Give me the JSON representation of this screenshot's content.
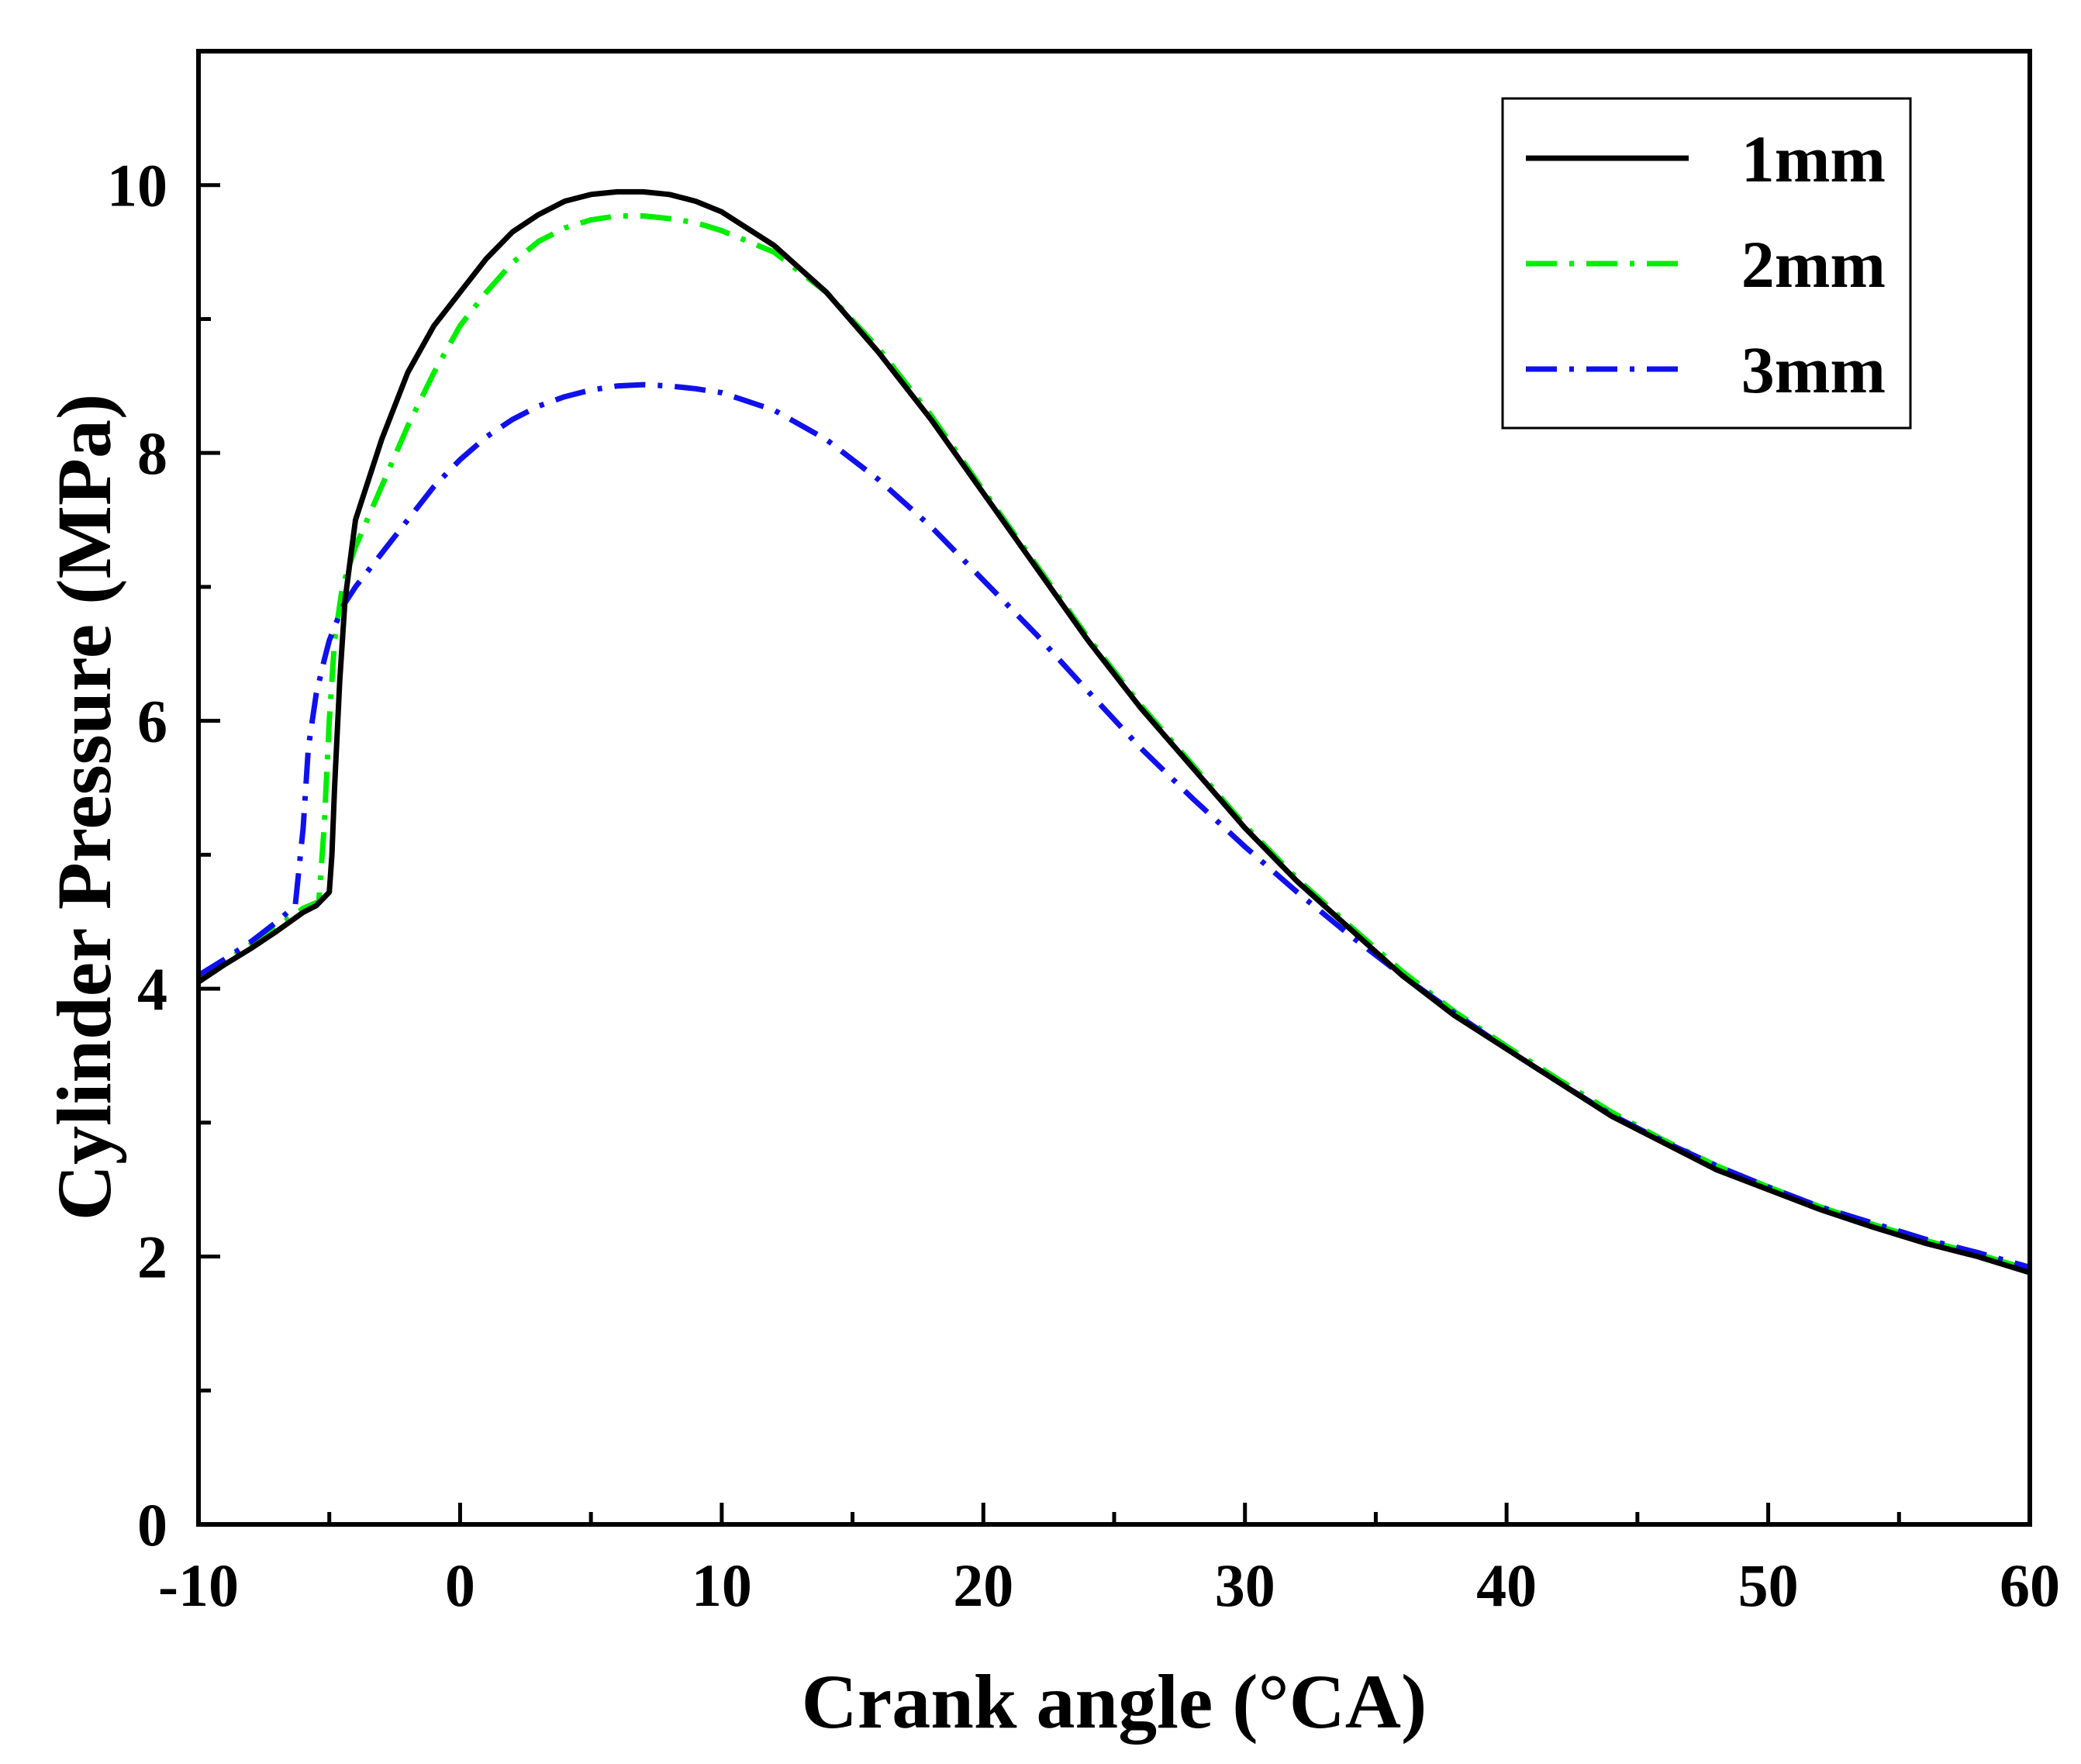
{
  "chart_data": {
    "type": "line",
    "title": "",
    "xlabel": "Crank angle (°CA)",
    "ylabel": "Cylinder Pressure (MPa)",
    "xlim": [
      -10,
      60
    ],
    "ylim": [
      0,
      11
    ],
    "xticks": [
      -10,
      0,
      10,
      20,
      30,
      40,
      50,
      60
    ],
    "xtick_labels": [
      "-10",
      "0",
      "10",
      "20",
      "30",
      "40",
      "50",
      "60"
    ],
    "yticks": [
      0,
      2,
      4,
      6,
      8,
      10
    ],
    "ytick_labels": [
      "0",
      "2",
      "4",
      "6",
      "8",
      "10"
    ],
    "grid": false,
    "legend_position": "top-right",
    "series": [
      {
        "name": "1mm",
        "color": "#000000",
        "style": "solid",
        "x": [
          -10,
          -9,
          -8,
          -7,
          -6,
          -5.5,
          -5,
          -4.9,
          -4.8,
          -4.6,
          -4.4,
          -4.2,
          -4,
          -3,
          -2,
          -1,
          0,
          1,
          2,
          3,
          4,
          5,
          6,
          7,
          8,
          9,
          10,
          12,
          14,
          16,
          18,
          20,
          22,
          24,
          26,
          28,
          30,
          32,
          34,
          36,
          38,
          40,
          42,
          44,
          46,
          48,
          50,
          52,
          54,
          56,
          58,
          60
        ],
        "y": [
          4.05,
          4.18,
          4.3,
          4.43,
          4.57,
          4.62,
          4.72,
          5.0,
          5.5,
          6.3,
          6.9,
          7.2,
          7.5,
          8.1,
          8.6,
          8.95,
          9.2,
          9.45,
          9.65,
          9.78,
          9.88,
          9.93,
          9.95,
          9.95,
          9.93,
          9.88,
          9.8,
          9.55,
          9.2,
          8.75,
          8.25,
          7.7,
          7.15,
          6.6,
          6.1,
          5.65,
          5.2,
          4.8,
          4.45,
          4.1,
          3.8,
          3.55,
          3.3,
          3.05,
          2.85,
          2.65,
          2.5,
          2.35,
          2.22,
          2.1,
          2.0,
          1.88
        ]
      },
      {
        "name": "2mm",
        "color": "#00ee00",
        "style": "dashdot",
        "x": [
          -10,
          -9,
          -8,
          -7,
          -6,
          -5.4,
          -5.2,
          -5.0,
          -4.8,
          -4.5,
          -4,
          -3,
          -2,
          -1,
          0,
          1,
          2,
          3,
          4,
          5,
          6,
          7,
          8,
          9,
          10,
          12,
          14,
          16,
          18,
          20,
          22,
          24,
          26,
          28,
          30,
          32,
          34,
          36,
          38,
          40,
          42,
          44,
          46,
          48,
          50,
          52,
          54,
          56,
          58,
          60
        ],
        "y": [
          4.08,
          4.2,
          4.33,
          4.46,
          4.6,
          4.65,
          5.2,
          6.0,
          6.6,
          7.0,
          7.3,
          7.75,
          8.2,
          8.6,
          8.95,
          9.2,
          9.42,
          9.58,
          9.68,
          9.74,
          9.77,
          9.77,
          9.75,
          9.72,
          9.66,
          9.5,
          9.2,
          8.78,
          8.28,
          7.72,
          7.17,
          6.62,
          6.12,
          5.67,
          5.22,
          4.82,
          4.47,
          4.13,
          3.83,
          3.57,
          3.32,
          3.08,
          2.87,
          2.68,
          2.52,
          2.37,
          2.24,
          2.12,
          2.02,
          1.9
        ]
      },
      {
        "name": "3mm",
        "color": "#1010ee",
        "style": "dashdot",
        "x": [
          -10,
          -9,
          -8,
          -7,
          -6.3,
          -6,
          -5.8,
          -5.5,
          -5.2,
          -5,
          -4.5,
          -4,
          -3,
          -2,
          -1,
          0,
          1,
          2,
          3,
          4,
          5,
          6,
          7,
          8,
          9,
          10,
          12,
          14,
          16,
          18,
          20,
          22,
          24,
          26,
          28,
          30,
          32,
          34,
          36,
          38,
          40,
          42,
          44,
          46,
          48,
          50,
          52,
          54,
          56,
          58,
          60
        ],
        "y": [
          4.1,
          4.22,
          4.35,
          4.5,
          4.62,
          5.2,
          5.8,
          6.2,
          6.45,
          6.6,
          6.85,
          7.0,
          7.25,
          7.5,
          7.75,
          7.95,
          8.12,
          8.25,
          8.35,
          8.42,
          8.47,
          8.5,
          8.51,
          8.5,
          8.48,
          8.45,
          8.32,
          8.1,
          7.8,
          7.45,
          7.05,
          6.65,
          6.22,
          5.8,
          5.42,
          5.06,
          4.72,
          4.4,
          4.1,
          3.82,
          3.55,
          3.3,
          3.06,
          2.86,
          2.68,
          2.52,
          2.37,
          2.25,
          2.13,
          2.03,
          1.92
        ]
      }
    ]
  }
}
